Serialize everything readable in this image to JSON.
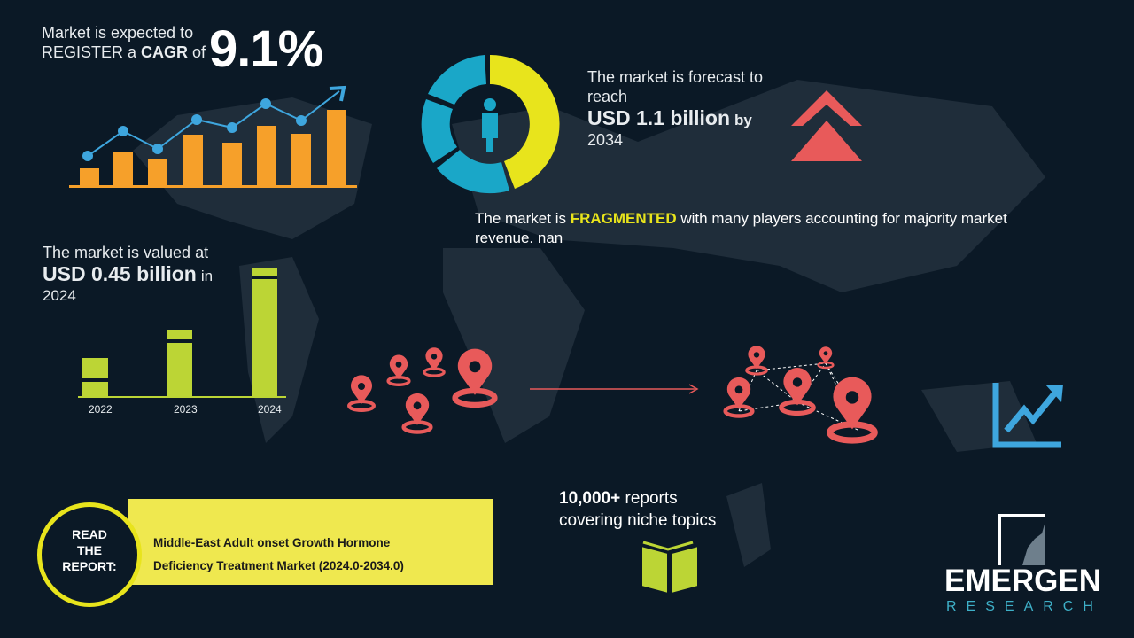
{
  "cagr": {
    "line1": "Market is expected to",
    "line2_a": "REGISTER a ",
    "line2_b": "CAGR",
    "line2_c": " of",
    "value": "9.1%"
  },
  "forecast": {
    "line1": "The market is forecast to",
    "line2": "reach",
    "value": "USD 1.1 billion",
    "suffix": "by",
    "year": "2034"
  },
  "fragmented": {
    "prefix": "The market is ",
    "highlight": "FRAGMENTED",
    "suffix": " with many players accounting for majority market",
    "line2": "revenue. nan"
  },
  "valued": {
    "line1": "The market is valued at",
    "value": "USD 0.45 billion",
    "suffix": "in",
    "year": "2024"
  },
  "years": [
    "2022",
    "2023",
    "2024"
  ],
  "reports": {
    "line1_bold": "10,000+",
    "line1_rest": " reports",
    "line2": "covering niche topics"
  },
  "read": {
    "label1": "READ",
    "label2": "THE",
    "label3": "REPORT:",
    "title1": "Middle-East Adult onset Growth Hormone",
    "title2": "Deficiency Treatment Market (2024.0-2034.0)"
  },
  "logo": {
    "name": "EMERGEN",
    "sub": "RESEARCH"
  },
  "colors": {
    "bg": "#0b1926",
    "orange": "#f6a02a",
    "blue": "#3ea6de",
    "yellow": "#e8e41c",
    "red": "#e85a5a",
    "green": "#bcd535"
  }
}
